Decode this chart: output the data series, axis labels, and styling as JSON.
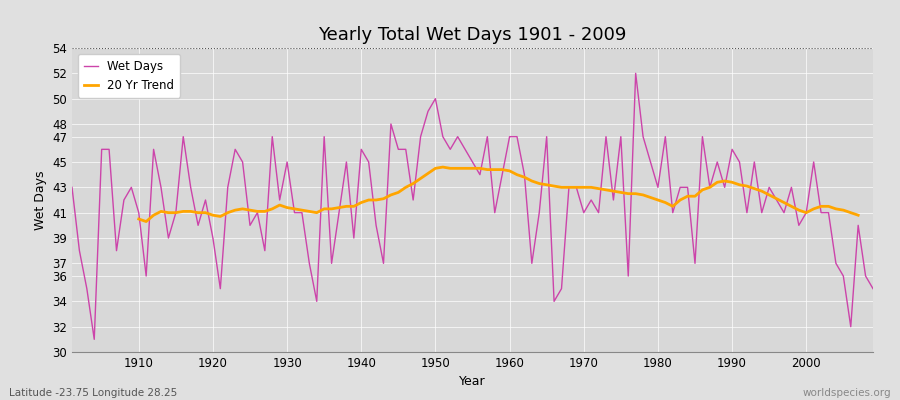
{
  "title": "Yearly Total Wet Days 1901 - 2009",
  "xlabel": "Year",
  "ylabel": "Wet Days",
  "subtitle_lat_lon": "Latitude -23.75 Longitude 28.25",
  "watermark": "worldspecies.org",
  "line_color": "#CC44AA",
  "trend_color": "#FFA500",
  "bg_color": "#E0E0E0",
  "plot_bg_color": "#D8D8D8",
  "ylim": [
    30,
    54
  ],
  "yticks": [
    30,
    32,
    34,
    36,
    37,
    39,
    41,
    43,
    45,
    47,
    48,
    50,
    52,
    54
  ],
  "xlim_left": 1901,
  "xlim_right": 2009,
  "xticks": [
    1910,
    1920,
    1930,
    1940,
    1950,
    1960,
    1970,
    1980,
    1990,
    2000
  ],
  "years": [
    1901,
    1902,
    1903,
    1904,
    1905,
    1906,
    1907,
    1908,
    1909,
    1910,
    1911,
    1912,
    1913,
    1914,
    1915,
    1916,
    1917,
    1918,
    1919,
    1920,
    1921,
    1922,
    1923,
    1924,
    1925,
    1926,
    1927,
    1928,
    1929,
    1930,
    1931,
    1932,
    1933,
    1934,
    1935,
    1936,
    1937,
    1938,
    1939,
    1940,
    1941,
    1942,
    1943,
    1944,
    1945,
    1946,
    1947,
    1948,
    1949,
    1950,
    1951,
    1952,
    1953,
    1954,
    1955,
    1956,
    1957,
    1958,
    1959,
    1960,
    1961,
    1962,
    1963,
    1964,
    1965,
    1966,
    1967,
    1968,
    1969,
    1970,
    1971,
    1972,
    1973,
    1974,
    1975,
    1976,
    1977,
    1978,
    1979,
    1980,
    1981,
    1982,
    1983,
    1984,
    1985,
    1986,
    1987,
    1988,
    1989,
    1990,
    1991,
    1992,
    1993,
    1994,
    1995,
    1996,
    1997,
    1998,
    1999,
    2000,
    2001,
    2002,
    2003,
    2004,
    2005,
    2006,
    2007,
    2008,
    2009
  ],
  "wet_days": [
    43,
    38,
    35,
    31,
    46,
    46,
    38,
    42,
    43,
    41,
    36,
    46,
    43,
    39,
    41,
    47,
    43,
    40,
    42,
    39,
    35,
    43,
    46,
    45,
    40,
    41,
    38,
    47,
    42,
    45,
    41,
    41,
    37,
    34,
    47,
    37,
    41,
    45,
    39,
    46,
    45,
    40,
    37,
    48,
    46,
    46,
    42,
    47,
    49,
    50,
    47,
    46,
    47,
    46,
    45,
    44,
    47,
    41,
    44,
    47,
    47,
    44,
    37,
    41,
    47,
    34,
    35,
    43,
    43,
    41,
    42,
    41,
    47,
    42,
    47,
    36,
    52,
    47,
    45,
    43,
    47,
    41,
    43,
    43,
    37,
    47,
    43,
    45,
    43,
    46,
    45,
    41,
    45,
    41,
    43,
    42,
    41,
    43,
    40,
    41,
    45,
    41,
    41,
    37,
    36,
    32,
    40,
    36,
    35
  ],
  "trend_values": [
    null,
    null,
    null,
    null,
    null,
    null,
    null,
    null,
    null,
    40.5,
    40.3,
    40.8,
    41.1,
    41.0,
    41.0,
    41.1,
    41.1,
    41.0,
    41.0,
    40.8,
    40.7,
    41.0,
    41.2,
    41.3,
    41.2,
    41.1,
    41.1,
    41.3,
    41.6,
    41.4,
    41.3,
    41.2,
    41.1,
    41.0,
    41.3,
    41.3,
    41.4,
    41.5,
    41.5,
    41.8,
    42.0,
    42.0,
    42.1,
    42.4,
    42.6,
    43.0,
    43.3,
    43.7,
    44.1,
    44.5,
    44.6,
    44.5,
    44.5,
    44.5,
    44.5,
    44.5,
    44.4,
    44.4,
    44.4,
    44.3,
    44.0,
    43.8,
    43.5,
    43.3,
    43.2,
    43.1,
    43.0,
    43.0,
    43.0,
    43.0,
    43.0,
    42.9,
    42.8,
    42.7,
    42.6,
    42.5,
    42.5,
    42.4,
    42.2,
    42.0,
    41.8,
    41.5,
    42.0,
    42.3,
    42.3,
    42.8,
    43.0,
    43.4,
    43.5,
    43.4,
    43.2,
    43.1,
    42.9,
    42.7,
    42.4,
    42.1,
    41.8,
    41.5,
    41.2,
    41.0,
    41.3,
    41.5,
    41.5,
    41.3,
    41.2,
    41.0,
    40.8,
    null,
    null
  ]
}
